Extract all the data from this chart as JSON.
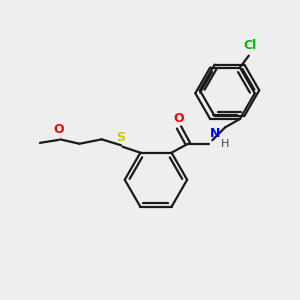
{
  "background_color": "#eeeeee",
  "bond_color": "#1a1a1a",
  "atom_colors": {
    "O": "#ff0000",
    "N": "#0000ff",
    "S": "#cccc00",
    "Cl": "#00bb00",
    "H": "#444444"
  },
  "figsize": [
    3.0,
    3.0
  ],
  "dpi": 100
}
